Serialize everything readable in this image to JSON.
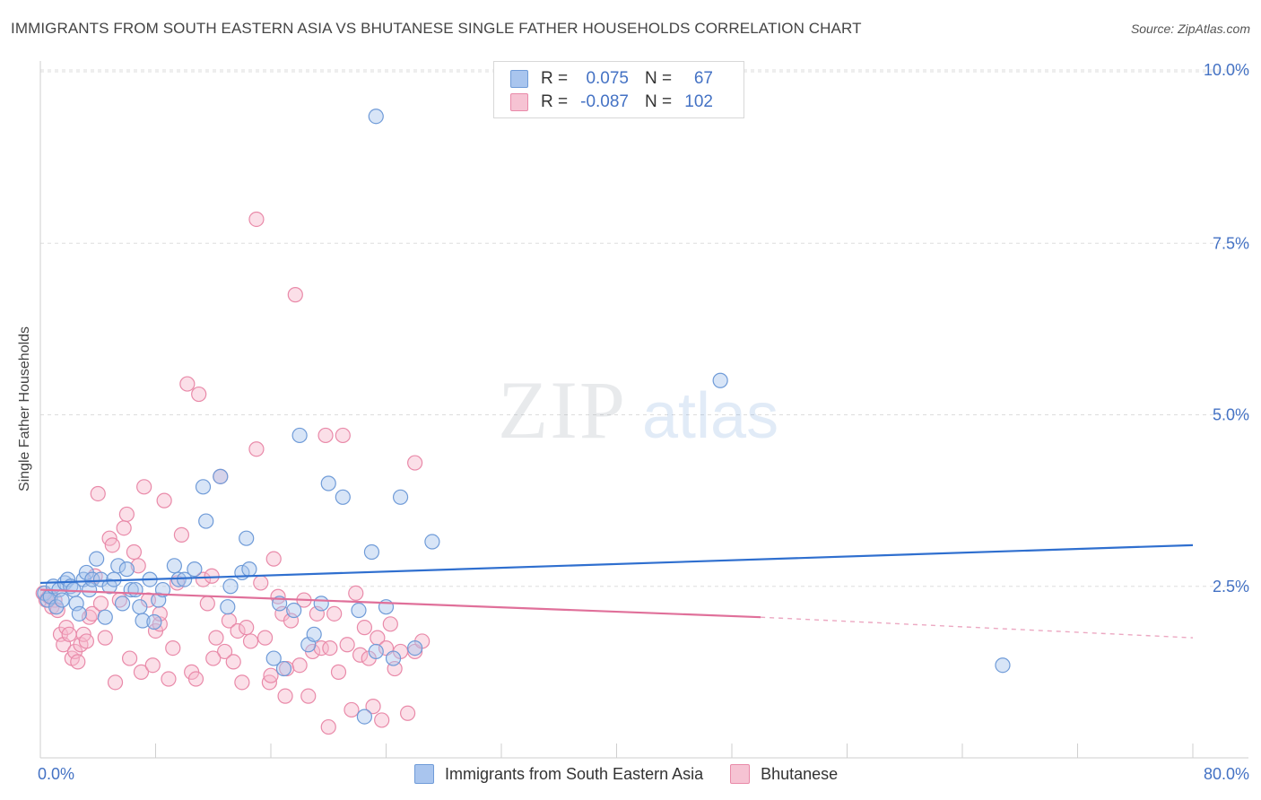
{
  "title": "IMMIGRANTS FROM SOUTH EASTERN ASIA VS BHUTANESE SINGLE FATHER HOUSEHOLDS CORRELATION CHART",
  "source": "Source: ZipAtlas.com",
  "watermark": {
    "zip": "ZIP",
    "atlas": "atlas"
  },
  "legend": {
    "r_label": "R =",
    "n_label": "N =",
    "series1": {
      "r": "0.075",
      "n": "67"
    },
    "series2": {
      "r": "-0.087",
      "n": "102"
    }
  },
  "colors": {
    "series1_fill": "#a9c5ee",
    "series1_stroke": "#6f9bd8",
    "series1_line": "#2f6fcf",
    "series2_fill": "#f6b8cc",
    "series2_stroke": "#e98aa9",
    "series2_line": "#e0709a",
    "axis_label": "#4472c4",
    "grid": "#dddddd"
  },
  "chart_data": {
    "type": "scatter",
    "title": "IMMIGRANTS FROM SOUTH EASTERN ASIA VS BHUTANESE SINGLE FATHER HOUSEHOLDS CORRELATION CHART",
    "xlabel": "",
    "ylabel": "Single Father Households",
    "xlim": [
      0,
      80
    ],
    "ylim": [
      0,
      10.0
    ],
    "x_tick_labels": [
      "0.0%",
      "80.0%"
    ],
    "y_ticks": [
      2.5,
      5.0,
      7.5,
      10.0
    ],
    "y_tick_labels": [
      "2.5%",
      "5.0%",
      "7.5%",
      "10.0%"
    ],
    "grid": true,
    "legend_position": "top-center",
    "series": [
      {
        "name": "Immigrants from South Eastern Asia",
        "r": 0.075,
        "n": 67,
        "trend": {
          "x0": 0,
          "y0": 2.55,
          "x1": 80,
          "y1": 3.1
        },
        "points": [
          [
            0.3,
            2.4
          ],
          [
            0.5,
            2.3
          ],
          [
            0.7,
            2.35
          ],
          [
            0.9,
            2.5
          ],
          [
            1.1,
            2.2
          ],
          [
            1.3,
            2.45
          ],
          [
            1.5,
            2.3
          ],
          [
            1.7,
            2.55
          ],
          [
            1.9,
            2.6
          ],
          [
            2.1,
            2.5
          ],
          [
            2.3,
            2.45
          ],
          [
            2.5,
            2.25
          ],
          [
            2.7,
            2.1
          ],
          [
            3.0,
            2.6
          ],
          [
            3.2,
            2.7
          ],
          [
            3.4,
            2.45
          ],
          [
            3.6,
            2.6
          ],
          [
            3.9,
            2.9
          ],
          [
            4.2,
            2.6
          ],
          [
            4.5,
            2.05
          ],
          [
            4.8,
            2.5
          ],
          [
            5.1,
            2.6
          ],
          [
            5.4,
            2.8
          ],
          [
            5.7,
            2.25
          ],
          [
            6.0,
            2.75
          ],
          [
            6.3,
            2.45
          ],
          [
            6.6,
            2.45
          ],
          [
            6.9,
            2.2
          ],
          [
            7.1,
            2.0
          ],
          [
            7.6,
            2.6
          ],
          [
            7.9,
            1.98
          ],
          [
            8.2,
            2.3
          ],
          [
            8.5,
            2.45
          ],
          [
            9.3,
            2.8
          ],
          [
            9.6,
            2.6
          ],
          [
            10.0,
            2.6
          ],
          [
            10.7,
            2.75
          ],
          [
            11.3,
            3.95
          ],
          [
            11.5,
            3.45
          ],
          [
            12.5,
            4.1
          ],
          [
            13.0,
            2.2
          ],
          [
            13.2,
            2.5
          ],
          [
            14.0,
            2.7
          ],
          [
            14.3,
            3.2
          ],
          [
            14.5,
            2.75
          ],
          [
            16.2,
            1.45
          ],
          [
            16.6,
            2.25
          ],
          [
            16.9,
            1.3
          ],
          [
            17.6,
            2.15
          ],
          [
            18.0,
            4.7
          ],
          [
            18.6,
            1.65
          ],
          [
            19.0,
            1.8
          ],
          [
            19.5,
            2.25
          ],
          [
            20.0,
            4.0
          ],
          [
            21.0,
            3.8
          ],
          [
            22.1,
            2.15
          ],
          [
            22.5,
            0.6
          ],
          [
            23.0,
            3.0
          ],
          [
            23.3,
            1.55
          ],
          [
            24.0,
            2.2
          ],
          [
            24.5,
            1.45
          ],
          [
            25.0,
            3.8
          ],
          [
            26.0,
            1.6
          ],
          [
            27.2,
            3.15
          ],
          [
            47.2,
            5.5
          ],
          [
            66.8,
            1.35
          ],
          [
            23.3,
            9.35
          ]
        ]
      },
      {
        "name": "Bhutanese",
        "r": -0.087,
        "n": 102,
        "trend": {
          "x0": 0,
          "y0": 2.45,
          "x1": 50,
          "y1": 2.05,
          "dash_x1": 80,
          "dash_y1": 1.75
        },
        "points": [
          [
            0.2,
            2.4
          ],
          [
            0.4,
            2.3
          ],
          [
            0.6,
            2.35
          ],
          [
            0.8,
            2.2
          ],
          [
            1.0,
            2.3
          ],
          [
            1.2,
            2.15
          ],
          [
            1.4,
            1.8
          ],
          [
            1.6,
            1.65
          ],
          [
            1.8,
            1.9
          ],
          [
            2.0,
            1.8
          ],
          [
            2.2,
            1.45
          ],
          [
            2.4,
            1.55
          ],
          [
            2.6,
            1.4
          ],
          [
            2.8,
            1.65
          ],
          [
            3.0,
            1.8
          ],
          [
            3.2,
            1.7
          ],
          [
            3.4,
            2.05
          ],
          [
            3.6,
            2.1
          ],
          [
            3.8,
            2.65
          ],
          [
            4.0,
            3.85
          ],
          [
            4.2,
            2.25
          ],
          [
            4.5,
            1.75
          ],
          [
            4.8,
            3.2
          ],
          [
            5.0,
            3.1
          ],
          [
            5.2,
            1.1
          ],
          [
            5.5,
            2.3
          ],
          [
            5.8,
            3.35
          ],
          [
            6.0,
            3.55
          ],
          [
            6.2,
            1.45
          ],
          [
            6.5,
            3.0
          ],
          [
            6.8,
            2.8
          ],
          [
            7.0,
            1.25
          ],
          [
            7.2,
            3.95
          ],
          [
            7.5,
            2.3
          ],
          [
            7.8,
            1.35
          ],
          [
            8.0,
            1.85
          ],
          [
            8.3,
            1.95
          ],
          [
            8.6,
            3.75
          ],
          [
            8.9,
            1.15
          ],
          [
            9.2,
            1.6
          ],
          [
            9.5,
            2.55
          ],
          [
            9.8,
            3.25
          ],
          [
            10.2,
            5.45
          ],
          [
            10.5,
            1.25
          ],
          [
            10.8,
            1.15
          ],
          [
            11.0,
            5.3
          ],
          [
            11.3,
            2.6
          ],
          [
            11.6,
            2.25
          ],
          [
            11.9,
            2.65
          ],
          [
            12.2,
            1.75
          ],
          [
            12.5,
            4.1
          ],
          [
            12.8,
            1.55
          ],
          [
            13.1,
            2.0
          ],
          [
            13.4,
            1.4
          ],
          [
            13.7,
            1.85
          ],
          [
            14.0,
            1.1
          ],
          [
            14.3,
            1.9
          ],
          [
            14.6,
            1.7
          ],
          [
            15.0,
            4.5
          ],
          [
            15.3,
            2.55
          ],
          [
            15.6,
            1.75
          ],
          [
            15.9,
            1.1
          ],
          [
            16.2,
            2.9
          ],
          [
            16.5,
            2.35
          ],
          [
            16.8,
            2.1
          ],
          [
            17.1,
            1.3
          ],
          [
            17.4,
            2.0
          ],
          [
            17.7,
            6.75
          ],
          [
            18.0,
            1.35
          ],
          [
            18.3,
            2.3
          ],
          [
            18.6,
            0.9
          ],
          [
            18.9,
            1.55
          ],
          [
            19.2,
            2.1
          ],
          [
            19.5,
            1.6
          ],
          [
            19.8,
            4.7
          ],
          [
            20.1,
            1.6
          ],
          [
            20.4,
            2.1
          ],
          [
            20.7,
            1.25
          ],
          [
            21.0,
            4.7
          ],
          [
            21.3,
            1.65
          ],
          [
            21.6,
            0.7
          ],
          [
            21.9,
            2.4
          ],
          [
            22.2,
            1.5
          ],
          [
            22.5,
            1.9
          ],
          [
            22.8,
            1.45
          ],
          [
            23.1,
            0.75
          ],
          [
            23.4,
            1.75
          ],
          [
            23.7,
            0.55
          ],
          [
            24.0,
            1.6
          ],
          [
            24.3,
            1.95
          ],
          [
            24.6,
            1.3
          ],
          [
            25.0,
            1.55
          ],
          [
            25.5,
            0.65
          ],
          [
            26.0,
            1.55
          ],
          [
            26.5,
            1.7
          ],
          [
            15.0,
            7.85
          ],
          [
            26.0,
            4.3
          ],
          [
            20.0,
            0.45
          ],
          [
            17.0,
            0.9
          ],
          [
            16.0,
            1.2
          ],
          [
            12.0,
            1.45
          ],
          [
            8.3,
            2.1
          ]
        ]
      }
    ]
  }
}
